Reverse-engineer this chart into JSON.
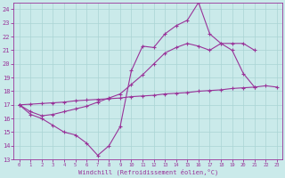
{
  "bg_color": "#caeaea",
  "grid_color": "#aad4d4",
  "line_color": "#993399",
  "xmin": -0.5,
  "xmax": 23.5,
  "ymin": 13,
  "ymax": 24.5,
  "xlabel": "Windchill (Refroidissement éolien,°C)",
  "yticks": [
    13,
    14,
    15,
    16,
    17,
    18,
    19,
    20,
    21,
    22,
    23,
    24
  ],
  "xticks": [
    0,
    1,
    2,
    3,
    4,
    5,
    6,
    7,
    8,
    9,
    10,
    11,
    12,
    13,
    14,
    15,
    16,
    17,
    18,
    19,
    20,
    21,
    22,
    23
  ],
  "y_A": [
    17,
    16.3,
    16.0,
    15.5,
    15.0,
    14.8,
    14.2,
    13.3,
    14.0,
    15.4,
    19.5,
    21.3,
    21.2,
    22.2,
    22.8,
    23.2,
    24.5,
    22.2,
    21.5,
    21.0,
    19.3,
    18.3,
    null,
    null
  ],
  "y_B": [
    17,
    16.5,
    16.2,
    16.3,
    16.5,
    16.7,
    16.9,
    17.2,
    17.5,
    17.8,
    18.5,
    19.2,
    20.0,
    20.8,
    21.2,
    21.5,
    21.3,
    21.0,
    21.5,
    21.5,
    21.5,
    21.0,
    null,
    null
  ],
  "y_C": [
    17.0,
    17.05,
    17.1,
    17.15,
    17.2,
    17.3,
    17.35,
    17.4,
    17.45,
    17.5,
    17.6,
    17.65,
    17.7,
    17.8,
    17.85,
    17.9,
    18.0,
    18.05,
    18.1,
    18.2,
    18.25,
    18.3,
    18.4,
    18.3
  ],
  "figwidth": 3.2,
  "figheight": 2.0,
  "dpi": 100
}
